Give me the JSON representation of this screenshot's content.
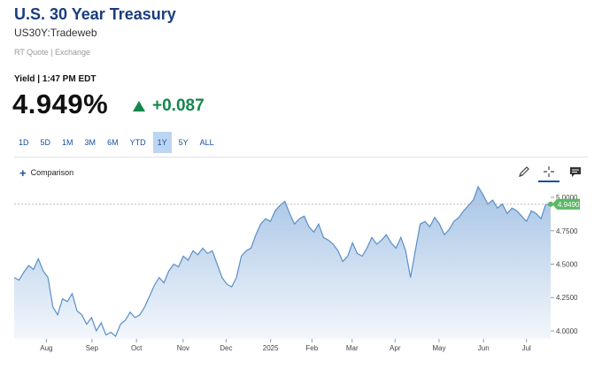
{
  "header": {
    "title": "U.S. 30 Year Treasury",
    "subtitle": "US30Y:Tradeweb",
    "quote_meta": "RT Quote | Exchange",
    "yield_label": "Yield | 1:47 PM EDT",
    "price": "4.949%",
    "change": "+0.087",
    "change_color": "#14874a"
  },
  "ranges": [
    {
      "label": "1D",
      "active": false
    },
    {
      "label": "5D",
      "active": false
    },
    {
      "label": "1M",
      "active": false
    },
    {
      "label": "3M",
      "active": false
    },
    {
      "label": "6M",
      "active": false
    },
    {
      "label": "YTD",
      "active": false
    },
    {
      "label": "1Y",
      "active": true
    },
    {
      "label": "5Y",
      "active": false
    },
    {
      "label": "ALL",
      "active": false
    }
  ],
  "toolbar": {
    "comparison_label": "Comparison",
    "tools": [
      "pencil-icon",
      "crosshair-icon",
      "comment-icon"
    ]
  },
  "chart_data": {
    "type": "area",
    "title": "",
    "xlabel": "",
    "ylabel": "",
    "x_ticks": [
      "Aug",
      "Sep",
      "Oct",
      "Nov",
      "Dec",
      "2025",
      "Feb",
      "Mar",
      "Apr",
      "May",
      "Jun",
      "Jul"
    ],
    "y_ticks": [
      "4.0000",
      "4.2500",
      "4.5000",
      "4.7500",
      "5.0000"
    ],
    "ylim": [
      3.94,
      5.08
    ],
    "current_value_label": "4.9490",
    "current_value": 4.949,
    "series": [
      {
        "values": [
          4.4,
          4.38,
          4.44,
          4.49,
          4.46,
          4.54,
          4.45,
          4.4,
          4.18,
          4.12,
          4.24,
          4.22,
          4.28,
          4.15,
          4.12,
          4.05,
          4.1,
          4.0,
          4.06,
          3.97,
          3.99,
          3.96,
          4.05,
          4.08,
          4.14,
          4.1,
          4.12,
          4.18,
          4.26,
          4.34,
          4.4,
          4.36,
          4.45,
          4.5,
          4.48,
          4.56,
          4.53,
          4.6,
          4.57,
          4.62,
          4.58,
          4.6,
          4.5,
          4.4,
          4.35,
          4.33,
          4.4,
          4.56,
          4.6,
          4.62,
          4.72,
          4.8,
          4.84,
          4.82,
          4.9,
          4.94,
          4.97,
          4.88,
          4.8,
          4.84,
          4.86,
          4.78,
          4.74,
          4.8,
          4.7,
          4.68,
          4.65,
          4.6,
          4.52,
          4.56,
          4.66,
          4.58,
          4.56,
          4.62,
          4.7,
          4.65,
          4.68,
          4.72,
          4.66,
          4.62,
          4.7,
          4.6,
          4.4,
          4.6,
          4.8,
          4.82,
          4.78,
          4.85,
          4.8,
          4.72,
          4.76,
          4.82,
          4.85,
          4.9,
          4.94,
          4.98,
          5.08,
          5.02,
          4.95,
          4.98,
          4.92,
          4.95,
          4.88,
          4.92,
          4.9,
          4.86,
          4.82,
          4.9,
          4.88,
          4.84,
          4.95,
          4.949
        ]
      }
    ]
  },
  "colors": {
    "line": "#5b8fc7",
    "fill_top": "#a7c4e6",
    "fill_bottom": "#f3f7fc",
    "marker": "#5bb866",
    "ref_line": "#bbbbbb"
  }
}
